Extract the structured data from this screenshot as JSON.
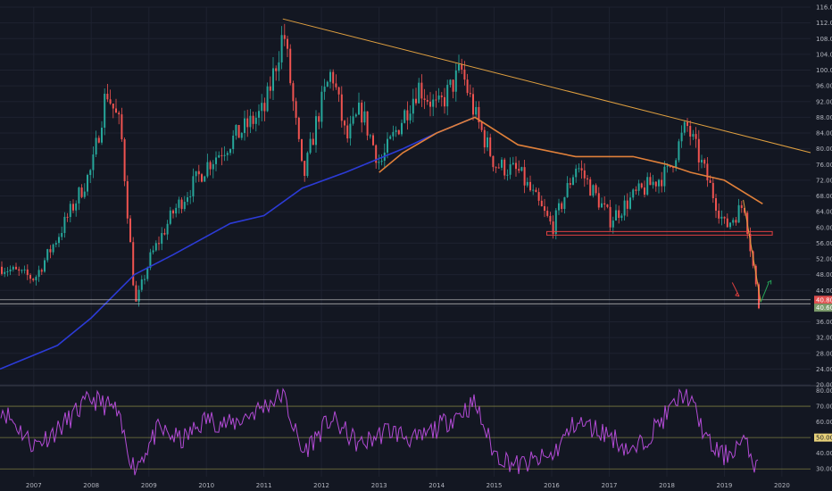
{
  "colors": {
    "background": "#131722",
    "grid": "#1e2230",
    "up": "#26a69a",
    "down": "#ef5350",
    "ma_short": "#e0803a",
    "ma_long": "#2c3bd6",
    "trendline": "#e0a040",
    "support": "#e04040",
    "rsi": "#b34bd6",
    "rsi_levels": "#7a7a40",
    "arrow_down": "#e04040",
    "arrow_up": "#26a65a",
    "price_badge": "#e04f4f",
    "price_badge2": "#7a9a6a",
    "rsi_badge": "#e8d27a",
    "axis_text": "#b2b5be"
  },
  "price_badges": {
    "close": "40.80",
    "level": "40.60"
  },
  "rsi_badge": "50.00",
  "chart_data": [
    {
      "type": "candlestick",
      "x": [
        "2006-06-01",
        "2007-01-01",
        "2007-06-01",
        "2008-01-01",
        "2008-04-01",
        "2008-07-01",
        "2008-10-01",
        "2009-01-01",
        "2009-06-01",
        "2010-01-01",
        "2010-06-01",
        "2011-01-01",
        "2011-05-01",
        "2011-09-01",
        "2011-12-01",
        "2012-03-01",
        "2012-06-01",
        "2012-09-01",
        "2013-01-01",
        "2013-05-01",
        "2013-09-01",
        "2014-01-01",
        "2014-06-01",
        "2014-09-01",
        "2015-01-01",
        "2015-06-01",
        "2016-01-01",
        "2016-06-01",
        "2017-01-01",
        "2017-06-01",
        "2018-01-01",
        "2018-05-01",
        "2018-10-01",
        "2019-01-01",
        "2019-05-01",
        "2019-08-01"
      ],
      "y": [
        50,
        47,
        58,
        75,
        95,
        85,
        40,
        52,
        64,
        76,
        82,
        90,
        110,
        72,
        88,
        100,
        82,
        90,
        76,
        86,
        96,
        90,
        100,
        88,
        76,
        74,
        60,
        76,
        62,
        68,
        74,
        86,
        70,
        60,
        66,
        40
      ],
      "ma_long": {
        "x": [
          "2006-06-01",
          "2007-06-01",
          "2008-01-01",
          "2008-10-01",
          "2009-06-01",
          "2010-06-01",
          "2011-01-01",
          "2011-09-01",
          "2012-06-01",
          "2013-06-01",
          "2014-01-01",
          "2014-09-01"
        ],
        "y": [
          24,
          30,
          37,
          48,
          53,
          61,
          63,
          70,
          74,
          80,
          84,
          88
        ]
      },
      "ma_short": {
        "x": [
          "2013-01-01",
          "2013-06-01",
          "2014-01-01",
          "2014-09-01",
          "2015-06-01",
          "2016-06-01",
          "2017-06-01",
          "2018-01-01",
          "2018-06-01",
          "2019-01-01",
          "2019-09-01"
        ],
        "y": [
          74,
          79,
          84,
          88,
          81,
          78,
          78,
          76,
          74,
          72,
          66
        ]
      },
      "trendline": {
        "x": [
          "2011-05-01",
          "2020-07-01"
        ],
        "y": [
          113,
          79
        ]
      },
      "support": {
        "x": [
          "2015-12-01",
          "2019-11-01"
        ],
        "y": [
          58.5,
          58.5
        ]
      },
      "ylim": [
        20,
        116
      ],
      "yticks": [
        "116.00",
        "112.00",
        "108.00",
        "104.00",
        "100.00",
        "96.00",
        "92.00",
        "88.00",
        "84.00",
        "80.00",
        "76.00",
        "72.00",
        "68.00",
        "64.00",
        "60.00",
        "56.00",
        "52.00",
        "48.00",
        "44.00",
        "40.00",
        "36.00",
        "32.00",
        "28.00",
        "24.00",
        "20.00"
      ]
    },
    {
      "type": "line",
      "name": "RSI",
      "x": [
        "2006-06-01",
        "2007-01-01",
        "2007-06-01",
        "2008-01-01",
        "2008-06-01",
        "2008-10-01",
        "2009-03-01",
        "2009-08-01",
        "2010-01-01",
        "2010-06-01",
        "2011-01-01",
        "2011-05-01",
        "2011-09-01",
        "2012-03-01",
        "2012-09-01",
        "2013-03-01",
        "2013-09-01",
        "2014-03-01",
        "2014-09-01",
        "2015-01-01",
        "2015-06-01",
        "2016-01-01",
        "2016-06-01",
        "2017-01-01",
        "2017-06-01",
        "2018-01-01",
        "2018-05-01",
        "2018-10-01",
        "2019-01-01",
        "2019-05-01",
        "2019-08-01"
      ],
      "y": [
        70,
        45,
        55,
        75,
        68,
        30,
        55,
        48,
        62,
        58,
        70,
        78,
        40,
        62,
        45,
        55,
        48,
        60,
        72,
        40,
        32,
        38,
        60,
        52,
        40,
        65,
        80,
        45,
        38,
        48,
        30
      ],
      "ylim": [
        25,
        82
      ],
      "levels": [
        70,
        50,
        30
      ],
      "yticks": [
        "80.00",
        "70.00",
        "60.00",
        "50.00",
        "40.00",
        "30.00"
      ]
    }
  ],
  "x_axis": {
    "labels": [
      "2007",
      "2008",
      "2009",
      "2010",
      "2011",
      "2012",
      "2013",
      "2014",
      "2015",
      "2016",
      "2017",
      "2018",
      "2019",
      "2020"
    ],
    "xlim": [
      "2006-06-01",
      "2020-07-01"
    ]
  }
}
